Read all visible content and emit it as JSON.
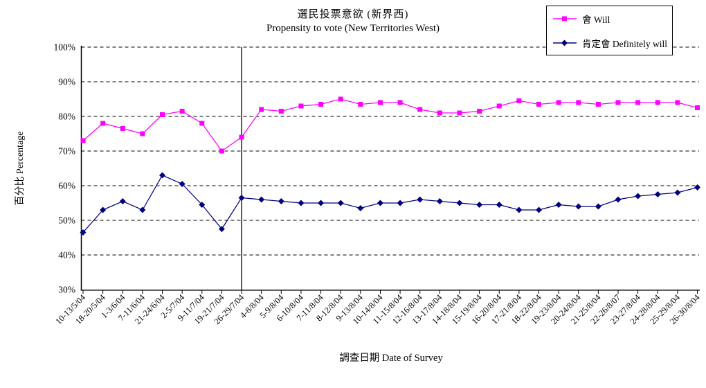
{
  "chart_data": {
    "type": "line",
    "title": "選民投票意欲 (新界西)",
    "subtitle": "Propensity to vote (New Territories West)",
    "xlabel": "調查日期 Date of Survey",
    "ylabel": "百分比 Percentage",
    "ylim": [
      30,
      100
    ],
    "y_tick_step": 10,
    "y_tick_labels": [
      "30%",
      "40%",
      "50%",
      "60%",
      "70%",
      "80%",
      "90%",
      "100%"
    ],
    "grid": "horizontal dashed lines at every 10%",
    "legend_position": "top-right boxed",
    "separator_line_at_category": "26-29/7/04",
    "categories": [
      "10-13/5/04",
      "18-20/5/04",
      "1-3/6/04",
      "7-11/6/04",
      "21-24/6/04",
      "2-5/7/04",
      "9-11/7/04",
      "19-21/7/04",
      "26-29/7/04",
      "4-8/8/04",
      "5-9/8/04",
      "6-10/8/04",
      "7-11/8/04",
      "8-12/8/04",
      "9-13/8/04",
      "10-14/8/04",
      "11-15/8/04",
      "12-16/8/04",
      "13-17/8/04",
      "14-18/8/04",
      "15-19/8/04",
      "16-20/8/04",
      "17-21/8/04",
      "18-22/8/04",
      "19-23/8/04",
      "20-24/8/04",
      "21-25/8/04",
      "22-26/8/07",
      "23-27/8/04",
      "24-28/8/04",
      "25-29/8/04",
      "26-30/8/04"
    ],
    "series": [
      {
        "name": "會 Will",
        "color": "#FF00FF",
        "marker": "square",
        "values": [
          73,
          78,
          76.5,
          75,
          80.5,
          81.5,
          78,
          70,
          74,
          82,
          81.5,
          83,
          83.5,
          85,
          83.5,
          84,
          84,
          82,
          81,
          81,
          81.5,
          83,
          84.5,
          83.5,
          84,
          84,
          83.5,
          84,
          84,
          84,
          84,
          82.5
        ]
      },
      {
        "name": "肯定會 Definitely will",
        "color": "#000080",
        "marker": "diamond",
        "values": [
          46.5,
          53,
          55.5,
          53,
          63,
          60.5,
          54.5,
          47.5,
          56.5,
          56,
          55.5,
          55,
          55,
          55,
          53.5,
          55,
          55,
          56,
          55.5,
          55,
          54.5,
          54.5,
          53,
          53,
          54.5,
          54,
          54,
          56,
          57,
          57.5,
          58,
          59.5
        ]
      }
    ]
  }
}
